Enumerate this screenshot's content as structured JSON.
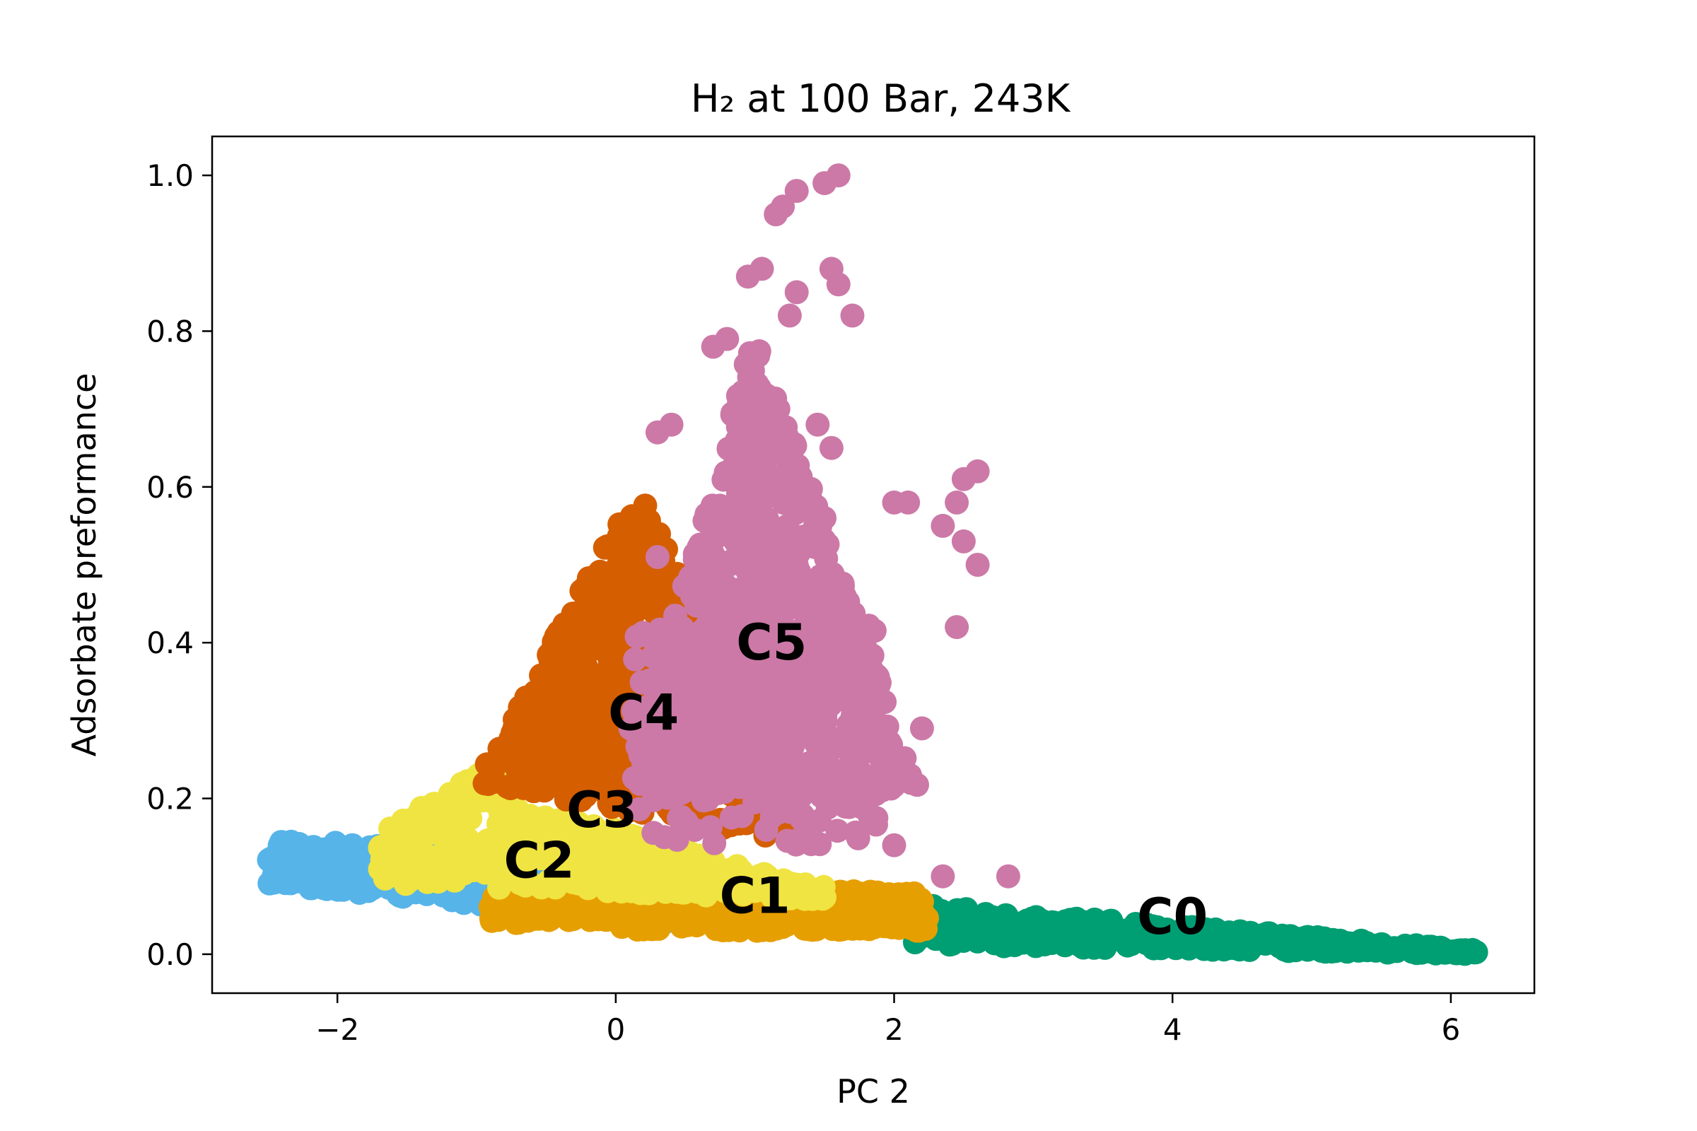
{
  "chart_data": {
    "type": "scatter",
    "title": "H₂ at 100 Bar, 243K",
    "xlabel": "PC 2",
    "ylabel": "Adsorbate preformance",
    "xlim": [
      -2.9,
      6.6
    ],
    "ylim": [
      -0.05,
      1.05
    ],
    "xticks": [
      -2,
      0,
      2,
      4,
      6
    ],
    "xtick_labels": [
      "−2",
      "0",
      "2",
      "4",
      "6"
    ],
    "yticks": [
      0.0,
      0.2,
      0.4,
      0.6,
      0.8,
      1.0
    ],
    "ytick_labels": [
      "0.0",
      "0.2",
      "0.4",
      "0.6",
      "0.8",
      "1.0"
    ],
    "grid": false,
    "legend": "none",
    "clusters": [
      {
        "label": "C0",
        "color": "#009e73",
        "label_pos": [
          4.0,
          0.048
        ],
        "region": {
          "x": [
            2.1,
            6.2
          ],
          "y_top_start": 0.07,
          "y_top_end": 0.005,
          "y_bot_start": 0.01,
          "y_bot_end": -0.003
        }
      },
      {
        "label": "C1",
        "color": "#e69f00",
        "label_pos": [
          1.0,
          0.075
        ],
        "region": {
          "x": [
            -0.9,
            2.25
          ],
          "y_top_start": 0.09,
          "y_top_end": 0.075,
          "y_bot_start": 0.04,
          "y_bot_end": 0.02
        }
      },
      {
        "label": "C2",
        "color": "#56b4e9",
        "label_pos": [
          -0.55,
          0.12
        ],
        "region": {
          "x": [
            -2.5,
            0.4
          ],
          "y_top_start": 0.15,
          "y_top_end": 0.12,
          "y_bot_start": 0.09,
          "y_bot_end": 0.04
        }
      },
      {
        "label": "C3",
        "color": "#f0e442",
        "label_pos": [
          -0.1,
          0.185
        ],
        "region": {
          "x": [
            -1.7,
            1.5
          ],
          "y_top_start": 0.16,
          "y_top_end": 0.12,
          "y_bot_start": 0.1,
          "y_bot_end": 0.07
        }
      },
      {
        "label": "C4",
        "color": "#d55e00",
        "label_pos": [
          0.2,
          0.31
        ],
        "region": {
          "x": [
            -1.0,
            1.4
          ],
          "y_top_start": 0.24,
          "y_top_end": 0.15,
          "y_bot_start": 0.2,
          "y_bot_end": 0.12
        }
      },
      {
        "label": "C5",
        "color": "#cc79a7",
        "label_pos": [
          1.12,
          0.4
        ],
        "region": {
          "x": [
            0.0,
            2.6
          ],
          "y_top_start": 0.5,
          "y_top_end": 0.45,
          "y_bot_start": 0.18,
          "y_bot_end": 0.15
        }
      }
    ],
    "outliers": [
      {
        "cluster": "C5",
        "points": [
          [
            1.6,
            1.0
          ],
          [
            1.5,
            0.99
          ],
          [
            1.3,
            0.98
          ],
          [
            1.2,
            0.96
          ],
          [
            1.15,
            0.95
          ],
          [
            1.05,
            0.88
          ],
          [
            0.95,
            0.87
          ],
          [
            1.55,
            0.88
          ],
          [
            1.6,
            0.86
          ],
          [
            1.7,
            0.82
          ],
          [
            1.3,
            0.85
          ],
          [
            1.25,
            0.82
          ],
          [
            2.6,
            0.62
          ],
          [
            2.5,
            0.61
          ],
          [
            2.45,
            0.58
          ],
          [
            2.5,
            0.53
          ],
          [
            2.6,
            0.5
          ],
          [
            2.35,
            0.55
          ],
          [
            2.45,
            0.42
          ],
          [
            2.0,
            0.58
          ],
          [
            2.1,
            0.58
          ],
          [
            2.2,
            0.29
          ],
          [
            2.0,
            0.14
          ],
          [
            2.35,
            0.1
          ],
          [
            2.82,
            0.1
          ],
          [
            1.55,
            0.65
          ],
          [
            1.45,
            0.68
          ],
          [
            0.7,
            0.78
          ],
          [
            0.8,
            0.79
          ],
          [
            0.4,
            0.68
          ],
          [
            0.3,
            0.67
          ],
          [
            1.3,
            0.5
          ],
          [
            1.5,
            0.56
          ],
          [
            0.3,
            0.51
          ]
        ]
      }
    ]
  }
}
